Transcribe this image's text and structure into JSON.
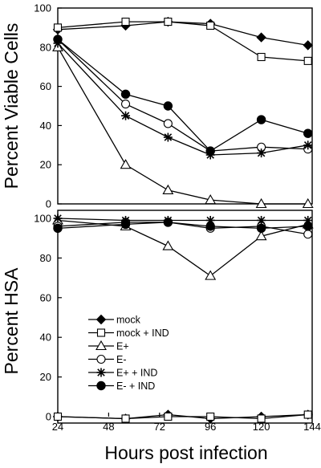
{
  "chart_data": [
    {
      "type": "line",
      "panel": "top",
      "title": "",
      "xlabel": "",
      "ylabel": "Percent Viable Cells",
      "ylim": [
        0,
        100
      ],
      "yticks": [
        0,
        20,
        40,
        60,
        80,
        100
      ],
      "xlim": [
        24,
        144
      ],
      "x": [
        24,
        56,
        76,
        96,
        120,
        142
      ],
      "grid": false,
      "series": [
        {
          "name": "mock",
          "marker": "diamond-filled",
          "values": [
            89,
            91,
            93,
            92,
            85,
            81
          ]
        },
        {
          "name": "mock + IND",
          "marker": "square-open",
          "values": [
            90,
            93,
            93,
            91,
            75,
            73
          ]
        },
        {
          "name": "E+",
          "marker": "triangle-open",
          "values": [
            80,
            20,
            7,
            2,
            0,
            0
          ]
        },
        {
          "name": "E-",
          "marker": "circle-open",
          "values": [
            84,
            51,
            41,
            27,
            29,
            28
          ]
        },
        {
          "name": "E+ + IND",
          "marker": "star",
          "values": [
            82,
            45,
            34,
            25,
            26,
            30
          ]
        },
        {
          "name": "E- + IND",
          "marker": "circle-filled",
          "values": [
            84,
            56,
            50,
            27,
            43,
            36
          ]
        }
      ]
    },
    {
      "type": "line",
      "panel": "bottom",
      "title": "",
      "xlabel": "Hours post infection",
      "ylabel": "Percent HSA",
      "ylim": [
        0,
        100
      ],
      "yticks": [
        0,
        20,
        40,
        60,
        80,
        100
      ],
      "xlim": [
        24,
        144
      ],
      "x": [
        24,
        56,
        76,
        96,
        120,
        142
      ],
      "xticks": [
        24,
        48,
        72,
        96,
        120,
        144
      ],
      "grid": false,
      "legend_position": "bottom-left",
      "series": [
        {
          "name": "mock",
          "marker": "diamond-filled",
          "values": [
            0,
            -1,
            1,
            -1,
            0,
            1
          ]
        },
        {
          "name": "mock + IND",
          "marker": "square-open",
          "values": [
            0,
            -1,
            0,
            0,
            -1,
            1
          ]
        },
        {
          "name": "E+",
          "marker": "triangle-open",
          "values": [
            99,
            96,
            86,
            71,
            91,
            97
          ]
        },
        {
          "name": "E-",
          "marker": "circle-open",
          "values": [
            96,
            98,
            98,
            95,
            96,
            92
          ]
        },
        {
          "name": "E+ + IND",
          "marker": "star",
          "values": [
            100,
            99,
            99,
            99,
            99,
            99
          ]
        },
        {
          "name": "E- + IND",
          "marker": "circle-filled",
          "values": [
            95,
            97,
            98,
            96,
            95,
            96
          ]
        }
      ],
      "legend": [
        "mock",
        "mock + IND",
        "E+",
        "E-",
        "E+  + IND",
        "E-  + IND"
      ]
    }
  ]
}
